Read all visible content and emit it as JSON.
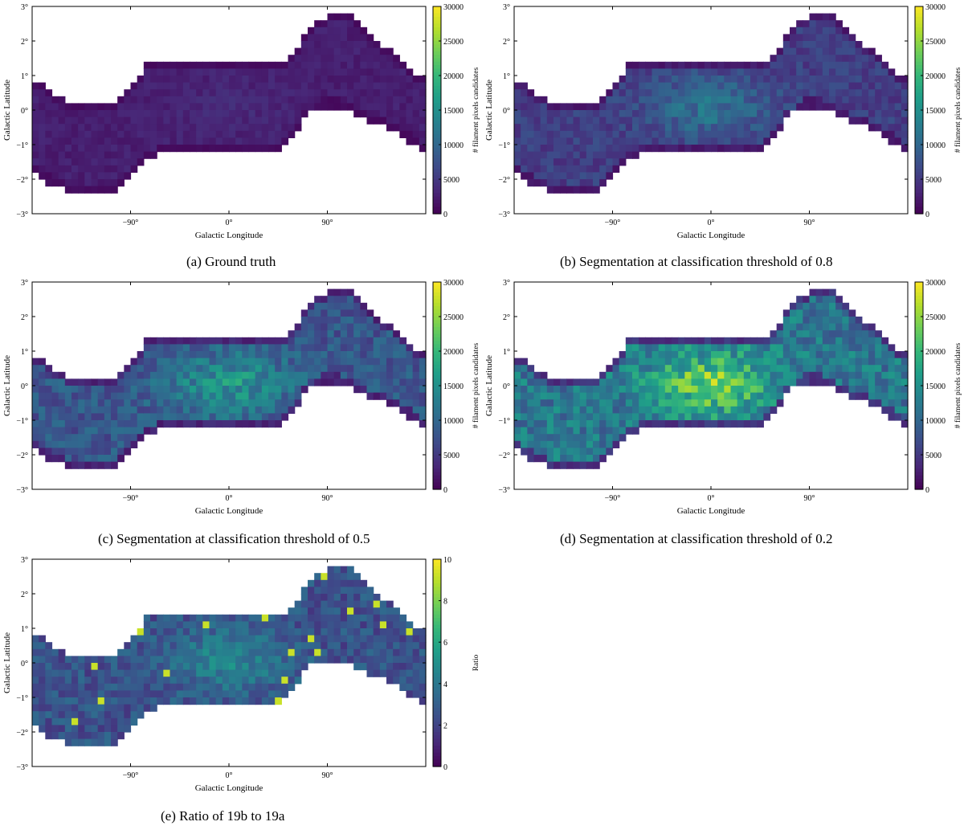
{
  "colormap": [
    "#440154",
    "#482878",
    "#3e4a89",
    "#31688e",
    "#26828e",
    "#1f9e89",
    "#35b779",
    "#6ece58",
    "#b5de2b",
    "#fde725"
  ],
  "axes": {
    "xlabel": "Galactic Longitude",
    "ylabel": "Galactic Latitude",
    "xticks": [
      "−90°",
      "0°",
      "90°"
    ],
    "yticks": [
      "3°",
      "2°",
      "1°",
      "0°",
      "−1°",
      "−2°",
      "−3°"
    ]
  },
  "colorbars": {
    "counts": {
      "label": "# filament pixels candidates",
      "ticks": [
        "30000",
        "25000",
        "20000",
        "15000",
        "10000",
        "5000",
        "0"
      ]
    },
    "ratio": {
      "label": "Ratio",
      "ticks": [
        "10",
        "8",
        "6",
        "4",
        "2",
        "0"
      ]
    }
  },
  "captions": {
    "a": "(a) Ground truth",
    "b": "(b) Segmentation at classification threshold of 0.8",
    "c": "(c) Segmentation at classification threshold of 0.5",
    "d": "(d) Segmentation at classification threshold of 0.2",
    "e": "(e) Ratio of 19b to 19a"
  },
  "chart_data": [
    {
      "id": "a",
      "type": "heatmap",
      "title": "(a) Ground truth",
      "xlabel": "Galactic Longitude",
      "ylabel": "Galactic Latitude",
      "colorbar_label": "# filament pixels candidates",
      "xlim": [
        -180,
        180
      ],
      "ylim": [
        -3,
        3
      ],
      "vmin": 0,
      "vmax": 30000,
      "band_peak": 4000,
      "typical_value": 3000
    },
    {
      "id": "b",
      "type": "heatmap",
      "title": "(b) Segmentation at classification threshold of 0.8",
      "xlabel": "Galactic Longitude",
      "ylabel": "Galactic Latitude",
      "colorbar_label": "# filament pixels candidates",
      "xlim": [
        -180,
        180
      ],
      "ylim": [
        -3,
        3
      ],
      "vmin": 0,
      "vmax": 30000,
      "band_peak": 13000,
      "typical_value": 6500
    },
    {
      "id": "c",
      "type": "heatmap",
      "title": "(c) Segmentation at classification threshold of 0.5",
      "xlabel": "Galactic Longitude",
      "ylabel": "Galactic Latitude",
      "colorbar_label": "# filament pixels candidates",
      "xlim": [
        -180,
        180
      ],
      "ylim": [
        -3,
        3
      ],
      "vmin": 0,
      "vmax": 30000,
      "band_peak": 18000,
      "typical_value": 9500
    },
    {
      "id": "d",
      "type": "heatmap",
      "title": "(d) Segmentation at classification threshold of 0.2",
      "xlabel": "Galactic Longitude",
      "ylabel": "Galactic Latitude",
      "colorbar_label": "# filament pixels candidates",
      "xlim": [
        -180,
        180
      ],
      "ylim": [
        -3,
        3
      ],
      "vmin": 0,
      "vmax": 30000,
      "band_peak": 27000,
      "typical_value": 14000
    },
    {
      "id": "e",
      "type": "heatmap",
      "title": "(e) Ratio of 19b to 19a",
      "xlabel": "Galactic Longitude",
      "ylabel": "Galactic Latitude",
      "colorbar_label": "Ratio",
      "xlim": [
        -180,
        180
      ],
      "ylim": [
        -3,
        3
      ],
      "vmin": 0,
      "vmax": 10,
      "band_peak": 4.5,
      "typical_value": 2.5
    }
  ]
}
